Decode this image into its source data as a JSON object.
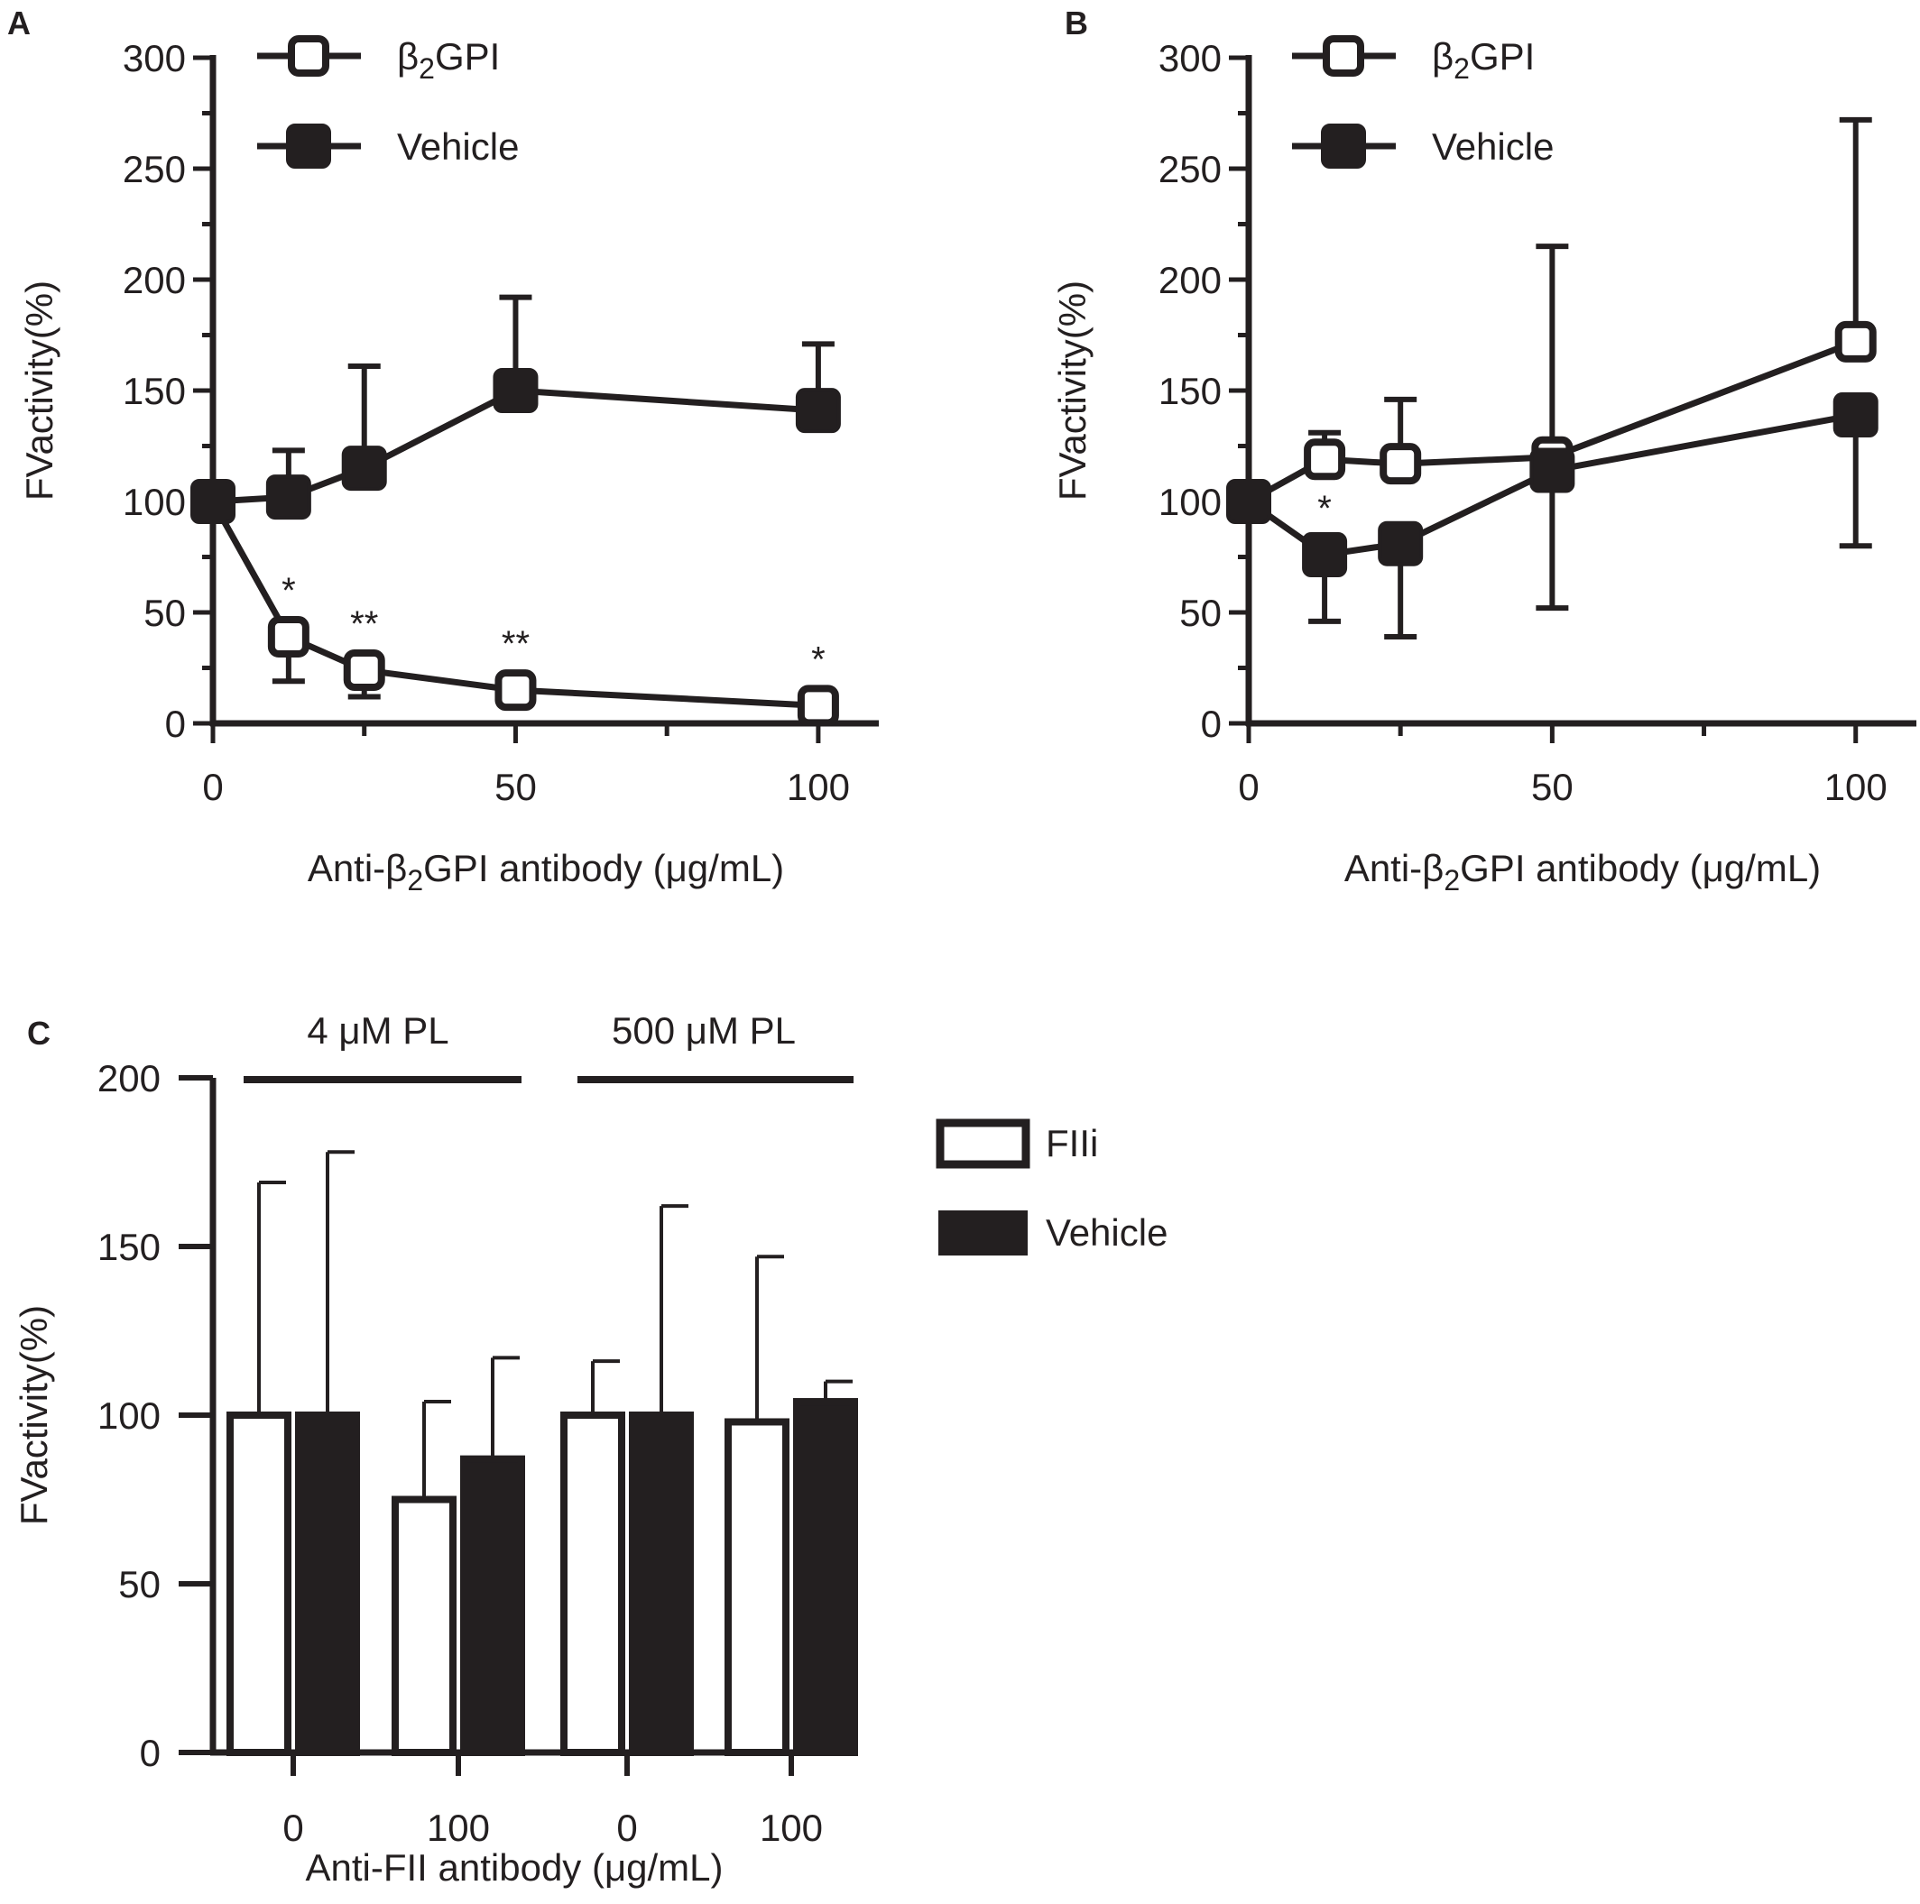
{
  "chart_data": [
    {
      "panel": "A",
      "type": "line",
      "xlabel_parts": [
        "Anti-",
        "β",
        "2",
        "GPI antibody (μg/mL)"
      ],
      "ylabel": "FVactivity(%)",
      "xlim": [
        0,
        110
      ],
      "ylim": [
        0,
        300
      ],
      "xticks": [
        0,
        50,
        100
      ],
      "yticks": [
        0,
        50,
        100,
        150,
        200,
        250,
        300
      ],
      "legend": {
        "placement": "top-left",
        "entries": [
          {
            "parts": [
              "β",
              "2",
              "GPI"
            ],
            "marker": "open-square"
          },
          {
            "parts": [
              "Vehicle"
            ],
            "marker": "filled-square"
          }
        ]
      },
      "series": [
        {
          "name": "β2GPI",
          "marker": "open-square",
          "x": [
            0,
            12.5,
            25,
            50,
            100
          ],
          "y": [
            100,
            39,
            24,
            15,
            8
          ],
          "err_low": [
            0,
            20,
            12,
            4,
            2
          ],
          "err_high": [
            0,
            0,
            0,
            0,
            0
          ],
          "annotations": [
            "",
            "*",
            "**",
            "**",
            "*"
          ]
        },
        {
          "name": "Vehicle",
          "marker": "filled-square",
          "x": [
            0,
            12.5,
            25,
            50,
            100
          ],
          "y": [
            100,
            102,
            115,
            150,
            141
          ],
          "err_low": [
            0,
            0,
            0,
            0,
            0
          ],
          "err_high": [
            0,
            21,
            46,
            42,
            30
          ],
          "annotations": [
            "",
            "",
            "",
            "",
            ""
          ]
        }
      ]
    },
    {
      "panel": "B",
      "type": "line",
      "xlabel_parts": [
        "Anti-",
        "β",
        "2",
        "GPI antibody (μg/mL)"
      ],
      "ylabel": "FVactivity(%)",
      "xlim": [
        0,
        110
      ],
      "ylim": [
        0,
        300
      ],
      "xticks": [
        0,
        50,
        100
      ],
      "yticks": [
        0,
        50,
        100,
        150,
        200,
        250,
        300
      ],
      "legend": {
        "placement": "top-left",
        "entries": [
          {
            "parts": [
              "β",
              "2",
              "GPI"
            ],
            "marker": "open-square"
          },
          {
            "parts": [
              "Vehicle"
            ],
            "marker": "filled-square"
          }
        ]
      },
      "series": [
        {
          "name": "β2GPI",
          "marker": "open-square",
          "x": [
            0,
            12.5,
            25,
            50,
            100
          ],
          "y": [
            100,
            119,
            117,
            120,
            172
          ],
          "err_low": [
            0,
            0,
            0,
            0,
            0
          ],
          "err_high": [
            0,
            12,
            29,
            95,
            100
          ],
          "annotations": [
            "",
            "",
            "",
            "",
            ""
          ]
        },
        {
          "name": "Vehicle",
          "marker": "filled-square",
          "x": [
            0,
            12.5,
            25,
            50,
            100
          ],
          "y": [
            100,
            76,
            81,
            114,
            139
          ],
          "err_low": [
            0,
            30,
            42,
            62,
            59
          ],
          "err_high": [
            0,
            0,
            0,
            0,
            0
          ],
          "annotations": [
            "",
            "*",
            "",
            "",
            ""
          ]
        }
      ]
    },
    {
      "panel": "C",
      "type": "bar",
      "xlabel": "Anti-FII antibody (μg/mL)",
      "ylabel": "FVactivity(%)",
      "ylim": [
        0,
        200
      ],
      "yticks": [
        0,
        50,
        100,
        150,
        200
      ],
      "categories": [
        "0",
        "100",
        "0",
        "100"
      ],
      "groups": [
        {
          "label": "4 μM PL",
          "categories": [
            0,
            1
          ]
        },
        {
          "label": "500 μM PL",
          "categories": [
            2,
            3
          ]
        }
      ],
      "legend": {
        "placement": "right",
        "entries": [
          {
            "parts": [
              "FIIi"
            ],
            "fill": "open"
          },
          {
            "parts": [
              "Vehicle"
            ],
            "fill": "filled"
          }
        ]
      },
      "series": [
        {
          "name": "FIIi",
          "fill": "open",
          "values": [
            100,
            75,
            100,
            98
          ],
          "err": [
            69,
            29,
            16,
            49
          ]
        },
        {
          "name": "Vehicle",
          "fill": "filled",
          "values": [
            100,
            87,
            100,
            104
          ],
          "err": [
            78,
            30,
            62,
            6
          ]
        }
      ]
    }
  ],
  "colors": {
    "ink": "#231f20",
    "background": "#ffffff"
  }
}
